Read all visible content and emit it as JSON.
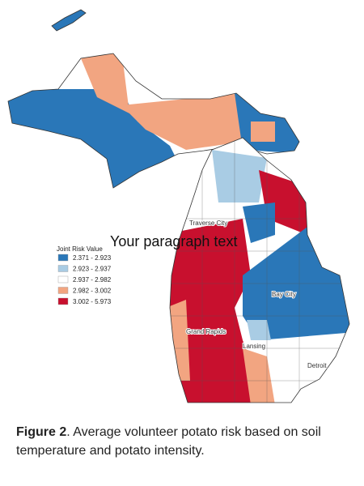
{
  "legend": {
    "title": "Joint Risk Value",
    "items": [
      {
        "label": "2.371 - 2.923",
        "color": "#2a77b8"
      },
      {
        "label": "2.923 - 2.937",
        "color": "#a9cce4"
      },
      {
        "label": "2.937 - 2.982",
        "color": "#ffffff"
      },
      {
        "label": "2.982 - 3.002",
        "color": "#f2a581"
      },
      {
        "label": "3.002 - 5.973",
        "color": "#c8102e"
      }
    ]
  },
  "map": {
    "cities": [
      "Traverse City",
      "Bay City",
      "Grand Rapids",
      "Lansing",
      "Detroit"
    ]
  },
  "overlay_text": "Your paragraph text",
  "caption": {
    "label": "Figure 2",
    "text": ". Average volunteer potato risk based on soil temperature and potato intensity."
  }
}
